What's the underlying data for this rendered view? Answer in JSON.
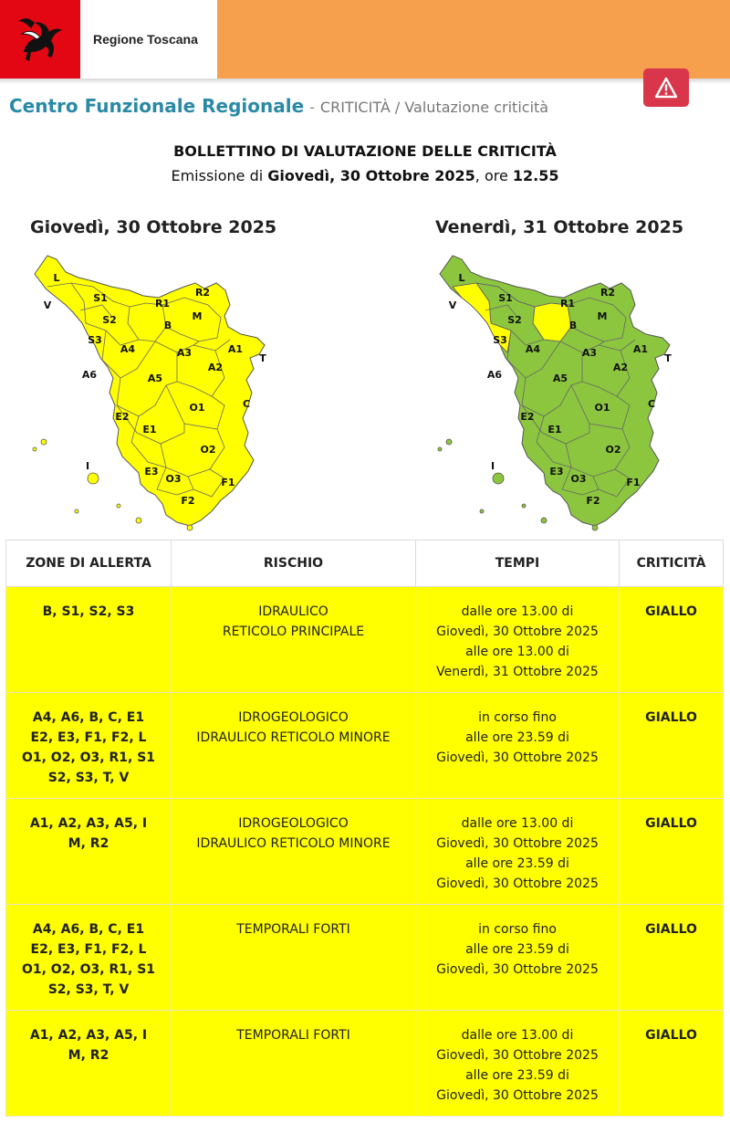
{
  "header": {
    "region_name": "Regione Toscana",
    "logo_icon": "pegasus-icon",
    "alert_icon": "warning-triangle-icon",
    "colors": {
      "bar": "#f6a04d",
      "logo_bg": "#e30613",
      "alert": "#d9364b"
    }
  },
  "breadcrumb": {
    "title": "Centro Funzionale Regionale",
    "separator": "-",
    "path": "CRITICITÀ / Valutazione criticità"
  },
  "bulletin": {
    "title": "BOLLETTINO DI VALUTAZIONE DELLE CRITICITÀ",
    "emission_prefix": "Emissione di",
    "emission_date": "Giovedì, 30 Ottobre 2025",
    "emission_mid": ", ore",
    "emission_time": "12.55"
  },
  "maps": [
    {
      "title": "Giovedì, 30 Ottobre 2025",
      "fill": "#ffff00",
      "zones": [
        {
          "label": "L",
          "level": "yellow"
        },
        {
          "label": "V",
          "level": "yellow"
        },
        {
          "label": "S1",
          "level": "yellow"
        },
        {
          "label": "S2",
          "level": "yellow"
        },
        {
          "label": "S3",
          "level": "yellow"
        },
        {
          "label": "R1",
          "level": "yellow"
        },
        {
          "label": "R2",
          "level": "yellow"
        },
        {
          "label": "B",
          "level": "yellow"
        },
        {
          "label": "M",
          "level": "yellow"
        },
        {
          "label": "A4",
          "level": "yellow"
        },
        {
          "label": "A3",
          "level": "yellow"
        },
        {
          "label": "A1",
          "level": "yellow"
        },
        {
          "label": "T",
          "level": "yellow"
        },
        {
          "label": "A6",
          "level": "yellow"
        },
        {
          "label": "A5",
          "level": "yellow"
        },
        {
          "label": "A2",
          "level": "yellow"
        },
        {
          "label": "E2",
          "level": "yellow"
        },
        {
          "label": "O1",
          "level": "yellow"
        },
        {
          "label": "C",
          "level": "yellow"
        },
        {
          "label": "E1",
          "level": "yellow"
        },
        {
          "label": "I",
          "level": "yellow"
        },
        {
          "label": "O2",
          "level": "yellow"
        },
        {
          "label": "E3",
          "level": "yellow"
        },
        {
          "label": "O3",
          "level": "yellow"
        },
        {
          "label": "F1",
          "level": "yellow"
        },
        {
          "label": "F2",
          "level": "yellow"
        }
      ]
    },
    {
      "title": "Venerdì, 31 Ottobre 2025",
      "fill": "#8cc63f",
      "highlight_fill": "#ffff00",
      "zones": [
        {
          "label": "L",
          "level": "green"
        },
        {
          "label": "V",
          "level": "green"
        },
        {
          "label": "S1",
          "level": "yellow"
        },
        {
          "label": "S2",
          "level": "yellow"
        },
        {
          "label": "S3",
          "level": "yellow"
        },
        {
          "label": "R1",
          "level": "green"
        },
        {
          "label": "R2",
          "level": "green"
        },
        {
          "label": "B",
          "level": "yellow"
        },
        {
          "label": "M",
          "level": "green"
        },
        {
          "label": "A4",
          "level": "green"
        },
        {
          "label": "A3",
          "level": "green"
        },
        {
          "label": "A1",
          "level": "green"
        },
        {
          "label": "T",
          "level": "green"
        },
        {
          "label": "A6",
          "level": "green"
        },
        {
          "label": "A5",
          "level": "green"
        },
        {
          "label": "A2",
          "level": "green"
        },
        {
          "label": "E2",
          "level": "green"
        },
        {
          "label": "O1",
          "level": "green"
        },
        {
          "label": "C",
          "level": "green"
        },
        {
          "label": "E1",
          "level": "green"
        },
        {
          "label": "I",
          "level": "green"
        },
        {
          "label": "O2",
          "level": "green"
        },
        {
          "label": "E3",
          "level": "green"
        },
        {
          "label": "O3",
          "level": "green"
        },
        {
          "label": "F1",
          "level": "green"
        },
        {
          "label": "F2",
          "level": "green"
        }
      ]
    }
  ],
  "table": {
    "headers": [
      "ZONE DI ALLERTA",
      "RISCHIO",
      "TEMPI",
      "CRITICITÀ"
    ],
    "row_color": "#ffff00",
    "rows": [
      {
        "zones": [
          "B, S1, S2, S3"
        ],
        "risk": [
          "IDRAULICO",
          "RETICOLO PRINCIPALE"
        ],
        "times": [
          "dalle ore 13.00 di",
          "Giovedì, 30 Ottobre 2025",
          "alle ore 13.00 di",
          "Venerdì, 31 Ottobre 2025"
        ],
        "level": "GIALLO"
      },
      {
        "zones": [
          "A4, A6, B, C, E1",
          "E2, E3, F1, F2, L",
          "O1, O2, O3, R1, S1",
          "S2, S3, T, V"
        ],
        "risk": [
          "IDROGEOLOGICO",
          "IDRAULICO RETICOLO MINORE"
        ],
        "times": [
          "in corso fino",
          "alle ore 23.59 di",
          "Giovedì, 30 Ottobre 2025"
        ],
        "level": "GIALLO"
      },
      {
        "zones": [
          "A1, A2, A3, A5, I",
          "M, R2"
        ],
        "risk": [
          "IDROGEOLOGICO",
          "IDRAULICO RETICOLO MINORE"
        ],
        "times": [
          "dalle ore 13.00 di",
          "Giovedì, 30 Ottobre 2025",
          "alle ore 23.59 di",
          "Giovedì, 30 Ottobre 2025"
        ],
        "level": "GIALLO"
      },
      {
        "zones": [
          "A4, A6, B, C, E1",
          "E2, E3, F1, F2, L",
          "O1, O2, O3, R1, S1",
          "S2, S3, T, V"
        ],
        "risk": [
          "TEMPORALI FORTI"
        ],
        "times": [
          "in corso fino",
          "alle ore 23.59 di",
          "Giovedì, 30 Ottobre 2025"
        ],
        "level": "GIALLO"
      },
      {
        "zones": [
          "A1, A2, A3, A5, I",
          "M, R2"
        ],
        "risk": [
          "TEMPORALI FORTI"
        ],
        "times": [
          "dalle ore 13.00 di",
          "Giovedì, 30 Ottobre 2025",
          "alle ore 23.59 di",
          "Giovedì, 30 Ottobre 2025"
        ],
        "level": "GIALLO"
      }
    ]
  }
}
